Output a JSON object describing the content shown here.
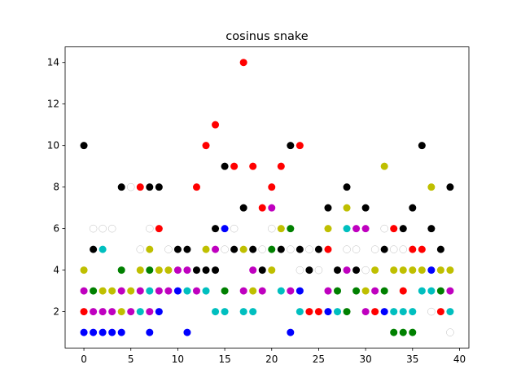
{
  "chart_data": {
    "type": "scatter",
    "title": "cosinus snake",
    "xlabel": "",
    "ylabel": "",
    "xlim": [
      -2,
      41
    ],
    "ylim": [
      0.25,
      14.75
    ],
    "x_ticks": [
      0,
      5,
      10,
      15,
      20,
      25,
      30,
      35,
      40
    ],
    "y_ticks": [
      2,
      4,
      6,
      8,
      10,
      12,
      14
    ],
    "grid": false,
    "legend": "none",
    "colors": {
      "r": "#ff0000",
      "b": "#0000ff",
      "k": "#000000",
      "g": "#008000",
      "c": "#00bfbf",
      "m": "#bf00bf",
      "y": "#bfbf00",
      "w": "#ffffff"
    },
    "points": [
      {
        "x": 0,
        "y": 10,
        "c": "k"
      },
      {
        "x": 0,
        "y": 4,
        "c": "y"
      },
      {
        "x": 0,
        "y": 3,
        "c": "m"
      },
      {
        "x": 0,
        "y": 2,
        "c": "r"
      },
      {
        "x": 0,
        "y": 1,
        "c": "b"
      },
      {
        "x": 1,
        "y": 6,
        "c": "w"
      },
      {
        "x": 1,
        "y": 5,
        "c": "k"
      },
      {
        "x": 1,
        "y": 3,
        "c": "g"
      },
      {
        "x": 1,
        "y": 2,
        "c": "m"
      },
      {
        "x": 1,
        "y": 1,
        "c": "b"
      },
      {
        "x": 2,
        "y": 6,
        "c": "w"
      },
      {
        "x": 2,
        "y": 5,
        "c": "c"
      },
      {
        "x": 2,
        "y": 3,
        "c": "y"
      },
      {
        "x": 2,
        "y": 2,
        "c": "m"
      },
      {
        "x": 2,
        "y": 1,
        "c": "b"
      },
      {
        "x": 3,
        "y": 6,
        "c": "w"
      },
      {
        "x": 3,
        "y": 3,
        "c": "y"
      },
      {
        "x": 3,
        "y": 2,
        "c": "m"
      },
      {
        "x": 3,
        "y": 1,
        "c": "b"
      },
      {
        "x": 4,
        "y": 8,
        "c": "k"
      },
      {
        "x": 4,
        "y": 4,
        "c": "g"
      },
      {
        "x": 4,
        "y": 3,
        "c": "m"
      },
      {
        "x": 4,
        "y": 2,
        "c": "y"
      },
      {
        "x": 4,
        "y": 1,
        "c": "b"
      },
      {
        "x": 5,
        "y": 8,
        "c": "w"
      },
      {
        "x": 5,
        "y": 3,
        "c": "y"
      },
      {
        "x": 5,
        "y": 2,
        "c": "m"
      },
      {
        "x": 6,
        "y": 8,
        "c": "r"
      },
      {
        "x": 6,
        "y": 5,
        "c": "w"
      },
      {
        "x": 6,
        "y": 4,
        "c": "y"
      },
      {
        "x": 6,
        "y": 3,
        "c": "m"
      },
      {
        "x": 6,
        "y": 2,
        "c": "c"
      },
      {
        "x": 7,
        "y": 8,
        "c": "k"
      },
      {
        "x": 7,
        "y": 6,
        "c": "w"
      },
      {
        "x": 7,
        "y": 5,
        "c": "y"
      },
      {
        "x": 7,
        "y": 4,
        "c": "g"
      },
      {
        "x": 7,
        "y": 3,
        "c": "c"
      },
      {
        "x": 7,
        "y": 2,
        "c": "m"
      },
      {
        "x": 7,
        "y": 1,
        "c": "b"
      },
      {
        "x": 8,
        "y": 8,
        "c": "k"
      },
      {
        "x": 8,
        "y": 6,
        "c": "r"
      },
      {
        "x": 8,
        "y": 4,
        "c": "y"
      },
      {
        "x": 8,
        "y": 3,
        "c": "m"
      },
      {
        "x": 8,
        "y": 2,
        "c": "b"
      },
      {
        "x": 9,
        "y": 5,
        "c": "w"
      },
      {
        "x": 9,
        "y": 4,
        "c": "y"
      },
      {
        "x": 9,
        "y": 3,
        "c": "m"
      },
      {
        "x": 10,
        "y": 5,
        "c": "k"
      },
      {
        "x": 10,
        "y": 4,
        "c": "m"
      },
      {
        "x": 10,
        "y": 3,
        "c": "b"
      },
      {
        "x": 11,
        "y": 5,
        "c": "k"
      },
      {
        "x": 11,
        "y": 4,
        "c": "m"
      },
      {
        "x": 11,
        "y": 3,
        "c": "c"
      },
      {
        "x": 11,
        "y": 1,
        "c": "b"
      },
      {
        "x": 12,
        "y": 8,
        "c": "r"
      },
      {
        "x": 12,
        "y": 4,
        "c": "k"
      },
      {
        "x": 12,
        "y": 3,
        "c": "m"
      },
      {
        "x": 13,
        "y": 10,
        "c": "r"
      },
      {
        "x": 13,
        "y": 5,
        "c": "y"
      },
      {
        "x": 13,
        "y": 4,
        "c": "k"
      },
      {
        "x": 13,
        "y": 3,
        "c": "c"
      },
      {
        "x": 14,
        "y": 11,
        "c": "r"
      },
      {
        "x": 14,
        "y": 6,
        "c": "k"
      },
      {
        "x": 14,
        "y": 5,
        "c": "m"
      },
      {
        "x": 14,
        "y": 4,
        "c": "k"
      },
      {
        "x": 14,
        "y": 2,
        "c": "c"
      },
      {
        "x": 15,
        "y": 9,
        "c": "k"
      },
      {
        "x": 15,
        "y": 6,
        "c": "b"
      },
      {
        "x": 15,
        "y": 5,
        "c": "w"
      },
      {
        "x": 15,
        "y": 3,
        "c": "g"
      },
      {
        "x": 15,
        "y": 2,
        "c": "c"
      },
      {
        "x": 16,
        "y": 9,
        "c": "r"
      },
      {
        "x": 16,
        "y": 6,
        "c": "w"
      },
      {
        "x": 16,
        "y": 5,
        "c": "k"
      },
      {
        "x": 17,
        "y": 14,
        "c": "r"
      },
      {
        "x": 17,
        "y": 7,
        "c": "k"
      },
      {
        "x": 17,
        "y": 5,
        "c": "y"
      },
      {
        "x": 17,
        "y": 3,
        "c": "m"
      },
      {
        "x": 17,
        "y": 2,
        "c": "c"
      },
      {
        "x": 18,
        "y": 9,
        "c": "r"
      },
      {
        "x": 18,
        "y": 5,
        "c": "k"
      },
      {
        "x": 18,
        "y": 4,
        "c": "m"
      },
      {
        "x": 18,
        "y": 3,
        "c": "y"
      },
      {
        "x": 18,
        "y": 2,
        "c": "c"
      },
      {
        "x": 19,
        "y": 7,
        "c": "r"
      },
      {
        "x": 19,
        "y": 5,
        "c": "w"
      },
      {
        "x": 19,
        "y": 4,
        "c": "k"
      },
      {
        "x": 19,
        "y": 3,
        "c": "m"
      },
      {
        "x": 20,
        "y": 8,
        "c": "r"
      },
      {
        "x": 20,
        "y": 7,
        "c": "m"
      },
      {
        "x": 20,
        "y": 6,
        "c": "w"
      },
      {
        "x": 20,
        "y": 5,
        "c": "g"
      },
      {
        "x": 20,
        "y": 4,
        "c": "y"
      },
      {
        "x": 21,
        "y": 9,
        "c": "r"
      },
      {
        "x": 21,
        "y": 6,
        "c": "y"
      },
      {
        "x": 21,
        "y": 5,
        "c": "k"
      },
      {
        "x": 21,
        "y": 3,
        "c": "c"
      },
      {
        "x": 22,
        "y": 10,
        "c": "k"
      },
      {
        "x": 22,
        "y": 6,
        "c": "g"
      },
      {
        "x": 22,
        "y": 5,
        "c": "w"
      },
      {
        "x": 22,
        "y": 3,
        "c": "m"
      },
      {
        "x": 22,
        "y": 1,
        "c": "b"
      },
      {
        "x": 23,
        "y": 10,
        "c": "r"
      },
      {
        "x": 23,
        "y": 5,
        "c": "k"
      },
      {
        "x": 23,
        "y": 4,
        "c": "w"
      },
      {
        "x": 23,
        "y": 3,
        "c": "b"
      },
      {
        "x": 23,
        "y": 2,
        "c": "c"
      },
      {
        "x": 24,
        "y": 5,
        "c": "w"
      },
      {
        "x": 24,
        "y": 4,
        "c": "k"
      },
      {
        "x": 24,
        "y": 2,
        "c": "r"
      },
      {
        "x": 25,
        "y": 5,
        "c": "k"
      },
      {
        "x": 25,
        "y": 4,
        "c": "w"
      },
      {
        "x": 25,
        "y": 2,
        "c": "r"
      },
      {
        "x": 26,
        "y": 7,
        "c": "k"
      },
      {
        "x": 26,
        "y": 6,
        "c": "y"
      },
      {
        "x": 26,
        "y": 5,
        "c": "r"
      },
      {
        "x": 26,
        "y": 3,
        "c": "m"
      },
      {
        "x": 26,
        "y": 2,
        "c": "b"
      },
      {
        "x": 27,
        "y": 4,
        "c": "k"
      },
      {
        "x": 27,
        "y": 3,
        "c": "g"
      },
      {
        "x": 27,
        "y": 2,
        "c": "c"
      },
      {
        "x": 28,
        "y": 8,
        "c": "k"
      },
      {
        "x": 28,
        "y": 7,
        "c": "y"
      },
      {
        "x": 28,
        "y": 6,
        "c": "c"
      },
      {
        "x": 28,
        "y": 5,
        "c": "w"
      },
      {
        "x": 28,
        "y": 4,
        "c": "m"
      },
      {
        "x": 28,
        "y": 2,
        "c": "g"
      },
      {
        "x": 29,
        "y": 6,
        "c": "m"
      },
      {
        "x": 29,
        "y": 5,
        "c": "w"
      },
      {
        "x": 29,
        "y": 4,
        "c": "k"
      },
      {
        "x": 29,
        "y": 3,
        "c": "g"
      },
      {
        "x": 30,
        "y": 7,
        "c": "k"
      },
      {
        "x": 30,
        "y": 6,
        "c": "m"
      },
      {
        "x": 30,
        "y": 4,
        "c": "w"
      },
      {
        "x": 30,
        "y": 3,
        "c": "y"
      },
      {
        "x": 30,
        "y": 2,
        "c": "m"
      },
      {
        "x": 31,
        "y": 5,
        "c": "w"
      },
      {
        "x": 31,
        "y": 4,
        "c": "y"
      },
      {
        "x": 31,
        "y": 3,
        "c": "m"
      },
      {
        "x": 31,
        "y": 2,
        "c": "r"
      },
      {
        "x": 32,
        "y": 9,
        "c": "y"
      },
      {
        "x": 32,
        "y": 6,
        "c": "w"
      },
      {
        "x": 32,
        "y": 5,
        "c": "k"
      },
      {
        "x": 32,
        "y": 3,
        "c": "g"
      },
      {
        "x": 32,
        "y": 2,
        "c": "b"
      },
      {
        "x": 33,
        "y": 6,
        "c": "r"
      },
      {
        "x": 33,
        "y": 5,
        "c": "w"
      },
      {
        "x": 33,
        "y": 4,
        "c": "y"
      },
      {
        "x": 33,
        "y": 2,
        "c": "c"
      },
      {
        "x": 33,
        "y": 1,
        "c": "g"
      },
      {
        "x": 34,
        "y": 6,
        "c": "k"
      },
      {
        "x": 34,
        "y": 5,
        "c": "w"
      },
      {
        "x": 34,
        "y": 4,
        "c": "y"
      },
      {
        "x": 34,
        "y": 3,
        "c": "r"
      },
      {
        "x": 34,
        "y": 2,
        "c": "c"
      },
      {
        "x": 34,
        "y": 1,
        "c": "g"
      },
      {
        "x": 35,
        "y": 7,
        "c": "k"
      },
      {
        "x": 35,
        "y": 5,
        "c": "r"
      },
      {
        "x": 35,
        "y": 4,
        "c": "y"
      },
      {
        "x": 35,
        "y": 2,
        "c": "c"
      },
      {
        "x": 35,
        "y": 1,
        "c": "g"
      },
      {
        "x": 36,
        "y": 10,
        "c": "k"
      },
      {
        "x": 36,
        "y": 5,
        "c": "r"
      },
      {
        "x": 36,
        "y": 4,
        "c": "y"
      },
      {
        "x": 36,
        "y": 3,
        "c": "c"
      },
      {
        "x": 37,
        "y": 8,
        "c": "y"
      },
      {
        "x": 37,
        "y": 6,
        "c": "k"
      },
      {
        "x": 37,
        "y": 4,
        "c": "b"
      },
      {
        "x": 37,
        "y": 3,
        "c": "c"
      },
      {
        "x": 37,
        "y": 2,
        "c": "w"
      },
      {
        "x": 38,
        "y": 5,
        "c": "k"
      },
      {
        "x": 38,
        "y": 4,
        "c": "y"
      },
      {
        "x": 38,
        "y": 3,
        "c": "g"
      },
      {
        "x": 38,
        "y": 2,
        "c": "r"
      },
      {
        "x": 39,
        "y": 8,
        "c": "k"
      },
      {
        "x": 39,
        "y": 4,
        "c": "y"
      },
      {
        "x": 39,
        "y": 3,
        "c": "m"
      },
      {
        "x": 39,
        "y": 2,
        "c": "c"
      },
      {
        "x": 39,
        "y": 1,
        "c": "w"
      }
    ]
  }
}
